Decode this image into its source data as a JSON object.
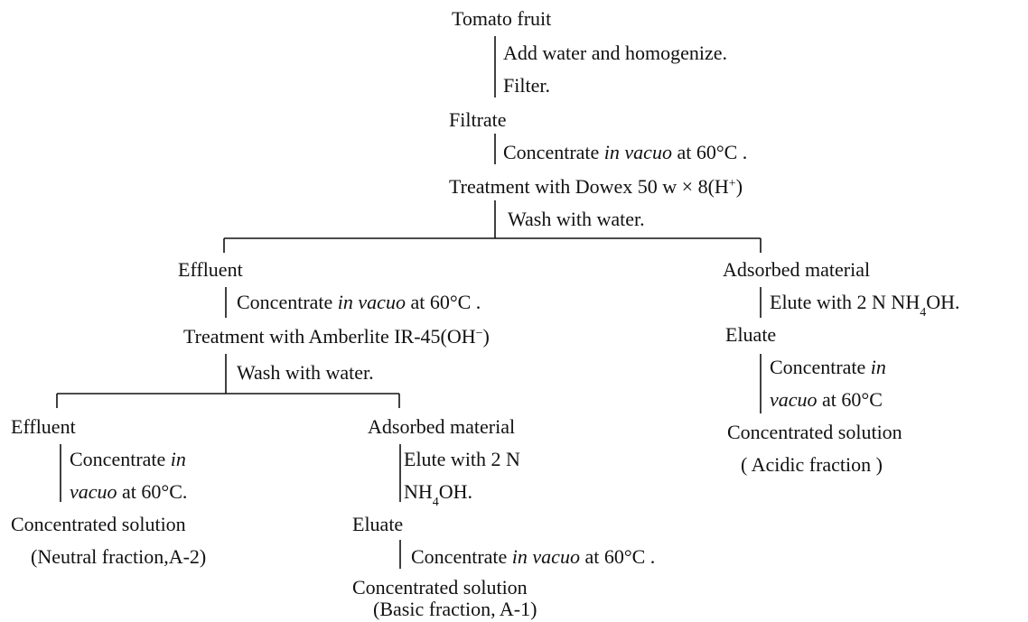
{
  "items": [
    {
      "runs": [
        {
          "t": "Tomato fruit"
        }
      ]
    },
    {
      "runs": [
        {
          "t": "Add water and homogenize."
        }
      ]
    },
    {
      "runs": [
        {
          "t": "Filter."
        }
      ]
    },
    {
      "runs": [
        {
          "t": "Filtrate"
        }
      ]
    },
    {
      "runs": [
        {
          "t": "Concentrate "
        },
        {
          "i": "in vacuo"
        },
        {
          "t": " at 60°C ."
        }
      ]
    },
    {
      "runs": [
        {
          "t": "Treatment with Dowex 50 w × 8(H"
        },
        {
          "sup": "+"
        },
        {
          "t": ")"
        }
      ]
    },
    {
      "runs": [
        {
          "t": "Wash with water."
        }
      ]
    },
    {
      "runs": [
        {
          "t": "Effluent"
        }
      ]
    },
    {
      "runs": [
        {
          "t": "Concentrate "
        },
        {
          "i": "in vacuo"
        },
        {
          "t": " at 60°C ."
        }
      ]
    },
    {
      "runs": [
        {
          "t": "Treatment with Amberlite IR-45(OH"
        },
        {
          "sup": "−"
        },
        {
          "t": ")"
        }
      ]
    },
    {
      "runs": [
        {
          "t": "Wash with water."
        }
      ]
    },
    {
      "runs": [
        {
          "t": "Effluent"
        }
      ]
    },
    {
      "runs": [
        {
          "t": "Concentrate "
        },
        {
          "i": "in"
        }
      ]
    },
    {
      "runs": [
        {
          "i": "vacuo"
        },
        {
          "t": " at 60°C."
        }
      ]
    },
    {
      "runs": [
        {
          "t": "Concentrated solution"
        }
      ]
    },
    {
      "runs": [
        {
          "t": "(Neutral fraction,A-2)"
        }
      ]
    },
    {
      "runs": [
        {
          "t": "Adsorbed material"
        }
      ]
    },
    {
      "runs": [
        {
          "t": "Elute with 2 N"
        }
      ]
    },
    {
      "runs": [
        {
          "t": "NH"
        },
        {
          "sub": "4"
        },
        {
          "t": "OH."
        }
      ]
    },
    {
      "runs": [
        {
          "t": "Eluate"
        }
      ]
    },
    {
      "runs": [
        {
          "t": "Concentrate "
        },
        {
          "i": "in vacuo"
        },
        {
          "t": " at 60°C ."
        }
      ]
    },
    {
      "runs": [
        {
          "t": "Concentrated solution"
        }
      ]
    },
    {
      "runs": [
        {
          "t": "(Basic fraction, A-1)"
        }
      ]
    },
    {
      "runs": [
        {
          "t": "Adsorbed material"
        }
      ]
    },
    {
      "runs": [
        {
          "t": "Elute with 2 N NH"
        },
        {
          "sub": "4"
        },
        {
          "t": "OH."
        }
      ]
    },
    {
      "runs": [
        {
          "t": "Eluate"
        }
      ]
    },
    {
      "runs": [
        {
          "t": "Concentrate "
        },
        {
          "i": "in"
        }
      ]
    },
    {
      "runs": [
        {
          "i": "vacuo"
        },
        {
          "t": " at 60°C"
        }
      ]
    },
    {
      "runs": [
        {
          "t": "Concentrated solution"
        }
      ]
    },
    {
      "runs": [
        {
          "t": "( Acidic fraction )"
        }
      ]
    }
  ]
}
